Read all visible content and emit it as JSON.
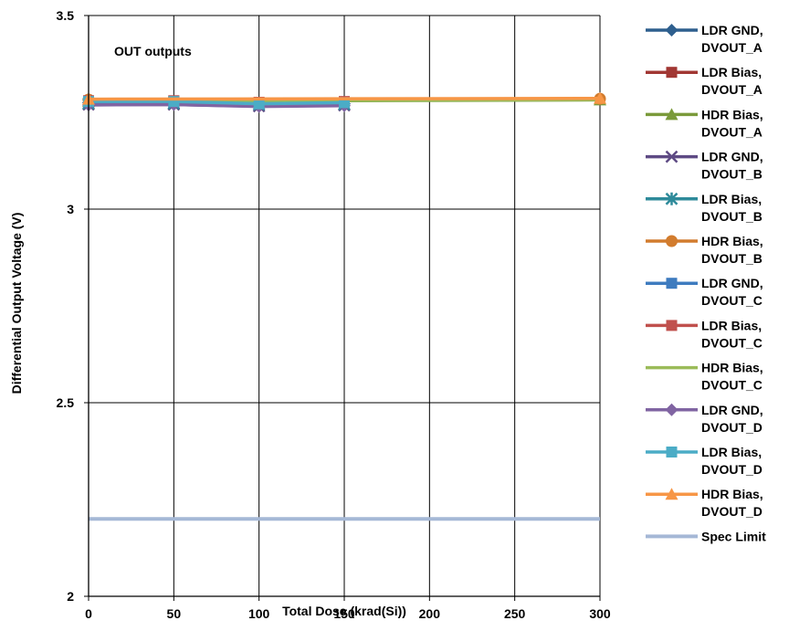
{
  "chart_data": {
    "type": "line",
    "title": "",
    "annotation": "OUT outputs",
    "xlabel": "Total Dose (krad(Si))",
    "ylabel": "Differential Output Voltage (V)",
    "xlim": [
      0,
      300
    ],
    "ylim": [
      2,
      3.5
    ],
    "xticks": [
      0,
      50,
      100,
      150,
      200,
      250,
      300
    ],
    "yticks": [
      2,
      2.5,
      3,
      3.5
    ],
    "ytick_labels": [
      "2",
      "2.5",
      "3",
      "3.5"
    ],
    "grid": true,
    "legend_position": "right",
    "series": [
      {
        "name": "LDR GND, DVOUT_A",
        "color": "#2E5F8E",
        "marker": "diamond",
        "x": [
          0,
          50,
          100,
          150
        ],
        "y": [
          3.275,
          3.275,
          3.27,
          3.272
        ]
      },
      {
        "name": "LDR Bias, DVOUT_A",
        "color": "#A13733",
        "marker": "square",
        "x": [
          0,
          50,
          100,
          150
        ],
        "y": [
          3.279,
          3.279,
          3.275,
          3.276
        ]
      },
      {
        "name": "HDR Bias, DVOUT_A",
        "color": "#7A9A3A",
        "marker": "triangle",
        "x": [
          0,
          300
        ],
        "y": [
          3.278,
          3.282
        ]
      },
      {
        "name": "LDR GND, DVOUT_B",
        "color": "#5E4A84",
        "marker": "x",
        "x": [
          0,
          50,
          100,
          150
        ],
        "y": [
          3.27,
          3.27,
          3.266,
          3.268
        ]
      },
      {
        "name": "LDR Bias, DVOUT_B",
        "color": "#2E8A9A",
        "marker": "star",
        "x": [
          0,
          50,
          100,
          150
        ],
        "y": [
          3.273,
          3.273,
          3.27,
          3.271
        ]
      },
      {
        "name": "HDR Bias, DVOUT_B",
        "color": "#D27C2E",
        "marker": "circle",
        "x": [
          0,
          300
        ],
        "y": [
          3.283,
          3.285
        ]
      },
      {
        "name": "LDR GND, DVOUT_C",
        "color": "#3E7BBF",
        "marker": "square",
        "x": [
          0,
          50,
          100,
          150
        ],
        "y": [
          3.276,
          3.276,
          3.272,
          3.274
        ]
      },
      {
        "name": "LDR Bias, DVOUT_C",
        "color": "#C0504D",
        "marker": "square",
        "x": [
          0,
          50,
          100,
          150
        ],
        "y": [
          3.28,
          3.28,
          3.276,
          3.278
        ]
      },
      {
        "name": "HDR Bias, DVOUT_C",
        "color": "#9BBB59",
        "marker": "none",
        "x": [
          0,
          300
        ],
        "y": [
          3.279,
          3.283
        ]
      },
      {
        "name": "LDR GND, DVOUT_D",
        "color": "#8064A2",
        "marker": "diamond",
        "x": [
          0,
          50,
          100,
          150
        ],
        "y": [
          3.269,
          3.27,
          3.265,
          3.267
        ]
      },
      {
        "name": "LDR Bias, DVOUT_D",
        "color": "#4BACC6",
        "marker": "square",
        "x": [
          0,
          50,
          100,
          150
        ],
        "y": [
          3.278,
          3.278,
          3.272,
          3.275
        ]
      },
      {
        "name": "HDR Bias, DVOUT_D",
        "color": "#F79646",
        "marker": "triangle",
        "x": [
          0,
          300
        ],
        "y": [
          3.284,
          3.286
        ]
      },
      {
        "name": "Spec Limit",
        "color": "#A5B8D6",
        "marker": "none",
        "kind": "spec",
        "x": [
          0,
          300
        ],
        "y": [
          2.2,
          2.2
        ]
      }
    ]
  }
}
